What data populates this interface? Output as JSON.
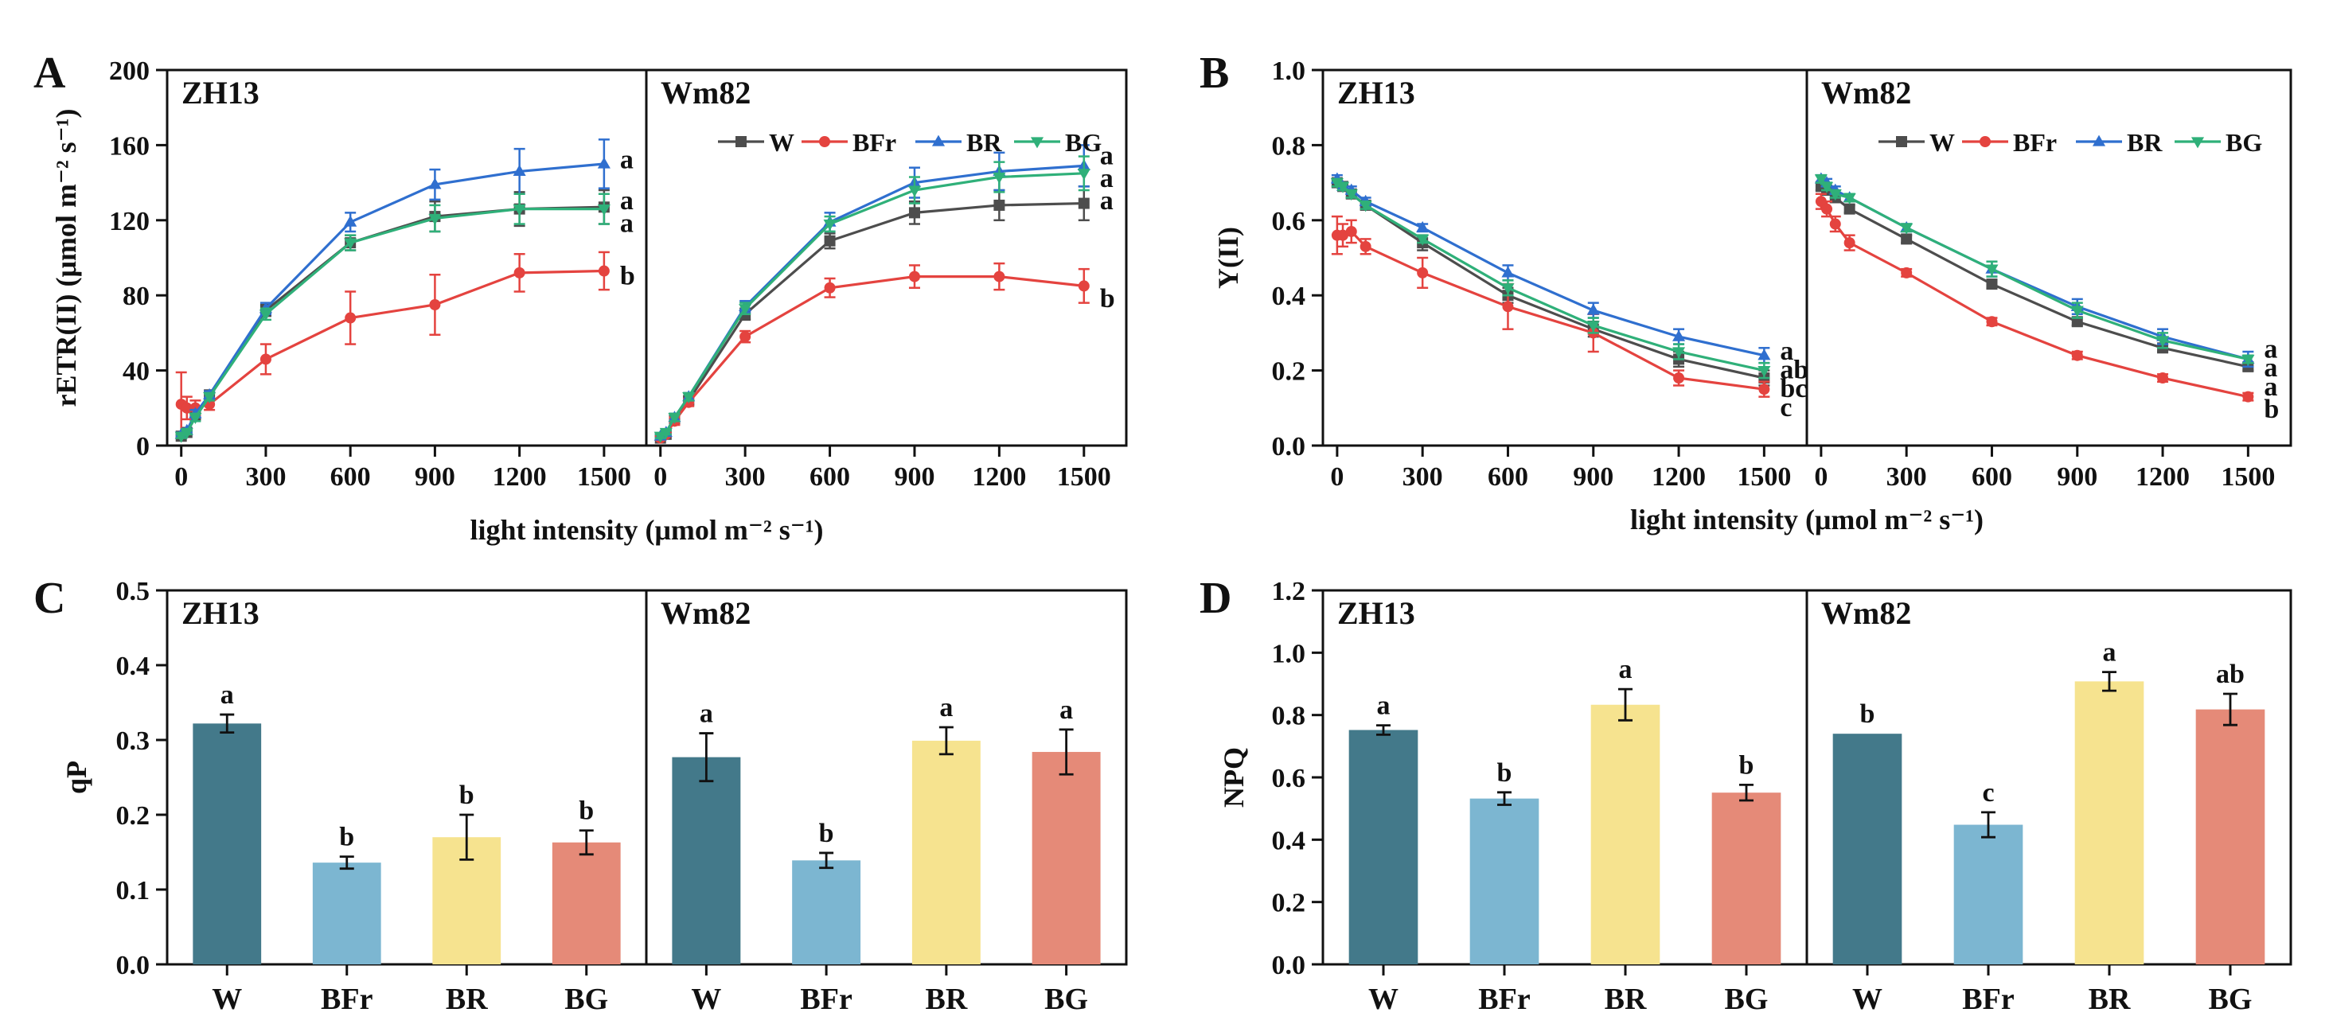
{
  "colors": {
    "W_line": "#4d4d4d",
    "BFr_line": "#e4433f",
    "BR_line": "#2f6fcf",
    "BG_line": "#2fb079",
    "W_bar": "#43798a",
    "BFr_bar": "#7cb6d1",
    "BR_bar": "#f6e38f",
    "BG_bar": "#e58a78",
    "axis": "#111111"
  },
  "chart_data": [
    {
      "id": "A",
      "panel_label": "A",
      "type": "line",
      "ylabel": "rETR(II) (μmol m⁻² s⁻¹)",
      "xlabel": "light intensity (μmol m⁻² s⁻¹)",
      "ylim": [
        0,
        200
      ],
      "yticks": [
        "0",
        "40",
        "80",
        "120",
        "160",
        "200"
      ],
      "ytick_values": [
        0,
        40,
        80,
        120,
        160,
        200
      ],
      "xlim": [
        -50,
        1650
      ],
      "xticks": [
        0,
        300,
        600,
        900,
        1200,
        1500
      ],
      "xtick_labels": [
        "0",
        "300",
        "600",
        "900",
        "1200",
        "1500"
      ],
      "legend_markers": [
        "square",
        "circle",
        "triangle-up",
        "triangle-down"
      ],
      "subpanels": [
        {
          "title": "ZH13",
          "show_legend": false,
          "x": [
            0,
            20,
            50,
            100,
            300,
            600,
            900,
            1200,
            1500
          ],
          "series": [
            {
              "name": "W",
              "values": [
                5,
                7,
                16,
                27,
                72,
                108,
                122,
                126,
                127
              ],
              "err": [
                1,
                1,
                2,
                2,
                3,
                4,
                8,
                9,
                9
              ]
            },
            {
              "name": "BFr",
              "values": [
                22,
                20,
                20,
                22,
                46,
                68,
                75,
                92,
                93
              ],
              "err": [
                17,
                6,
                4,
                3,
                8,
                14,
                16,
                10,
                10
              ]
            },
            {
              "name": "BR",
              "values": [
                6,
                8,
                17,
                27,
                73,
                119,
                139,
                146,
                150
              ],
              "err": [
                1,
                1,
                2,
                2,
                3,
                5,
                8,
                12,
                13
              ]
            },
            {
              "name": "BG",
              "values": [
                5,
                7,
                15,
                26,
                70,
                108,
                121,
                126,
                126
              ],
              "err": [
                1,
                1,
                2,
                2,
                3,
                4,
                7,
                8,
                8
              ]
            }
          ],
          "letters": [
            {
              "text": "a",
              "y": 152
            },
            {
              "text": "a",
              "y": 130
            },
            {
              "text": "a",
              "y": 118
            },
            {
              "text": "b",
              "y": 90
            }
          ]
        },
        {
          "title": "Wm82",
          "show_legend": true,
          "x": [
            0,
            20,
            50,
            100,
            300,
            600,
            900,
            1200,
            1500
          ],
          "series": [
            {
              "name": "W",
              "values": [
                4,
                6,
                14,
                24,
                70,
                109,
                124,
                128,
                129
              ],
              "err": [
                1,
                1,
                2,
                2,
                3,
                4,
                6,
                8,
                9
              ]
            },
            {
              "name": "BFr",
              "values": [
                4,
                6,
                13,
                23,
                58,
                84,
                90,
                90,
                85
              ],
              "err": [
                1,
                1,
                2,
                2,
                3,
                5,
                6,
                7,
                9
              ]
            },
            {
              "name": "BR",
              "values": [
                5,
                7,
                15,
                26,
                74,
                119,
                140,
                146,
                149
              ],
              "err": [
                1,
                1,
                2,
                2,
                3,
                5,
                8,
                10,
                11
              ]
            },
            {
              "name": "BG",
              "values": [
                5,
                7,
                15,
                26,
                73,
                118,
                136,
                143,
                145
              ],
              "err": [
                1,
                1,
                2,
                2,
                3,
                4,
                7,
                8,
                9
              ]
            }
          ],
          "letters": [
            {
              "text": "a",
              "y": 154
            },
            {
              "text": "a",
              "y": 142
            },
            {
              "text": "a",
              "y": 130
            },
            {
              "text": "b",
              "y": 78
            }
          ]
        }
      ]
    },
    {
      "id": "B",
      "panel_label": "B",
      "type": "line",
      "ylabel": "Y(II)",
      "xlabel": "light intensity (μmol m⁻² s⁻¹)",
      "ylim": [
        0,
        1.0
      ],
      "yticks": [
        "0.0",
        "0.2",
        "0.4",
        "0.6",
        "0.8",
        "1.0"
      ],
      "ytick_values": [
        0,
        0.2,
        0.4,
        0.6,
        0.8,
        1.0
      ],
      "xlim": [
        -50,
        1650
      ],
      "xticks": [
        0,
        300,
        600,
        900,
        1200,
        1500
      ],
      "xtick_labels": [
        "0",
        "300",
        "600",
        "900",
        "1200",
        "1500"
      ],
      "legend_markers": [
        "square",
        "circle",
        "triangle-up",
        "triangle-down"
      ],
      "subpanels": [
        {
          "title": "ZH13",
          "show_legend": false,
          "x": [
            0,
            20,
            50,
            100,
            300,
            600,
            900,
            1200,
            1500
          ],
          "series": [
            {
              "name": "W",
              "values": [
                0.7,
                0.69,
                0.67,
                0.64,
                0.54,
                0.4,
                0.31,
                0.23,
                0.18
              ],
              "err": [
                0.01,
                0.01,
                0.01,
                0.01,
                0.02,
                0.02,
                0.02,
                0.02,
                0.02
              ]
            },
            {
              "name": "BFr",
              "values": [
                0.56,
                0.56,
                0.57,
                0.53,
                0.46,
                0.37,
                0.3,
                0.18,
                0.15
              ],
              "err": [
                0.05,
                0.03,
                0.03,
                0.02,
                0.04,
                0.06,
                0.05,
                0.02,
                0.02
              ]
            },
            {
              "name": "BR",
              "values": [
                0.71,
                0.69,
                0.68,
                0.65,
                0.58,
                0.46,
                0.36,
                0.29,
                0.24
              ],
              "err": [
                0.01,
                0.01,
                0.01,
                0.01,
                0.01,
                0.02,
                0.02,
                0.02,
                0.02
              ]
            },
            {
              "name": "BG",
              "values": [
                0.7,
                0.69,
                0.67,
                0.64,
                0.55,
                0.42,
                0.32,
                0.25,
                0.2
              ],
              "err": [
                0.01,
                0.01,
                0.01,
                0.01,
                0.01,
                0.02,
                0.02,
                0.02,
                0.02
              ]
            }
          ],
          "letters": [
            {
              "text": "a",
              "y": 0.25
            },
            {
              "text": "ab",
              "y": 0.2
            },
            {
              "text": "bc",
              "y": 0.15
            },
            {
              "text": "c",
              "y": 0.1
            }
          ]
        },
        {
          "title": "Wm82",
          "show_legend": true,
          "x": [
            0,
            20,
            50,
            100,
            300,
            600,
            900,
            1200,
            1500
          ],
          "series": [
            {
              "name": "W",
              "values": [
                0.69,
                0.68,
                0.66,
                0.63,
                0.55,
                0.43,
                0.33,
                0.26,
                0.21
              ],
              "err": [
                0.01,
                0.01,
                0.01,
                0.01,
                0.01,
                0.01,
                0.01,
                0.01,
                0.01
              ]
            },
            {
              "name": "BFr",
              "values": [
                0.65,
                0.63,
                0.59,
                0.54,
                0.46,
                0.33,
                0.24,
                0.18,
                0.13
              ],
              "err": [
                0.02,
                0.02,
                0.02,
                0.02,
                0.01,
                0.01,
                0.01,
                0.01,
                0.01
              ]
            },
            {
              "name": "BR",
              "values": [
                0.71,
                0.7,
                0.68,
                0.66,
                0.58,
                0.47,
                0.37,
                0.29,
                0.23
              ],
              "err": [
                0.01,
                0.01,
                0.01,
                0.01,
                0.01,
                0.02,
                0.02,
                0.02,
                0.02
              ]
            },
            {
              "name": "BG",
              "values": [
                0.71,
                0.69,
                0.67,
                0.66,
                0.58,
                0.47,
                0.36,
                0.28,
                0.23
              ],
              "err": [
                0.01,
                0.01,
                0.01,
                0.01,
                0.01,
                0.02,
                0.02,
                0.02,
                0.01
              ]
            }
          ],
          "letters": [
            {
              "text": "a",
              "y": 0.255
            },
            {
              "text": "a",
              "y": 0.205
            },
            {
              "text": "a",
              "y": 0.155
            },
            {
              "text": "b",
              "y": 0.095
            }
          ]
        }
      ]
    },
    {
      "id": "C",
      "panel_label": "C",
      "type": "bar",
      "ylabel": "qP",
      "ylim": [
        0,
        0.5
      ],
      "yticks": [
        "0.0",
        "0.1",
        "0.2",
        "0.3",
        "0.4",
        "0.5"
      ],
      "ytick_values": [
        0,
        0.1,
        0.2,
        0.3,
        0.4,
        0.5
      ],
      "categories": [
        "W",
        "BFr",
        "BR",
        "BG"
      ],
      "subpanels": [
        {
          "title": "ZH13",
          "values": [
            0.322,
            0.136,
            0.17,
            0.163
          ],
          "err": [
            0.012,
            0.008,
            0.03,
            0.016
          ],
          "letters": [
            "a",
            "b",
            "b",
            "b"
          ]
        },
        {
          "title": "Wm82",
          "values": [
            0.277,
            0.139,
            0.299,
            0.284
          ],
          "err": [
            0.032,
            0.01,
            0.018,
            0.03
          ],
          "letters": [
            "a",
            "b",
            "a",
            "a"
          ]
        }
      ]
    },
    {
      "id": "D",
      "panel_label": "D",
      "type": "bar",
      "ylabel": "NPQ",
      "ylim": [
        0,
        1.2
      ],
      "yticks": [
        "0.0",
        "0.2",
        "0.4",
        "0.6",
        "0.8",
        "1.0",
        "1.2"
      ],
      "ytick_values": [
        0,
        0.2,
        0.4,
        0.6,
        0.8,
        1.0,
        1.2
      ],
      "categories": [
        "W",
        "BFr",
        "BR",
        "BG"
      ],
      "subpanels": [
        {
          "title": "ZH13",
          "values": [
            0.752,
            0.532,
            0.833,
            0.551
          ],
          "err": [
            0.015,
            0.02,
            0.05,
            0.025
          ],
          "letters": [
            "a",
            "b",
            "a",
            "b"
          ]
        },
        {
          "title": "Wm82",
          "values": [
            0.74,
            0.448,
            0.908,
            0.818
          ],
          "err": [
            0.0,
            0.04,
            0.03,
            0.05
          ],
          "letters": [
            "b",
            "c",
            "a",
            "ab"
          ]
        }
      ]
    }
  ]
}
